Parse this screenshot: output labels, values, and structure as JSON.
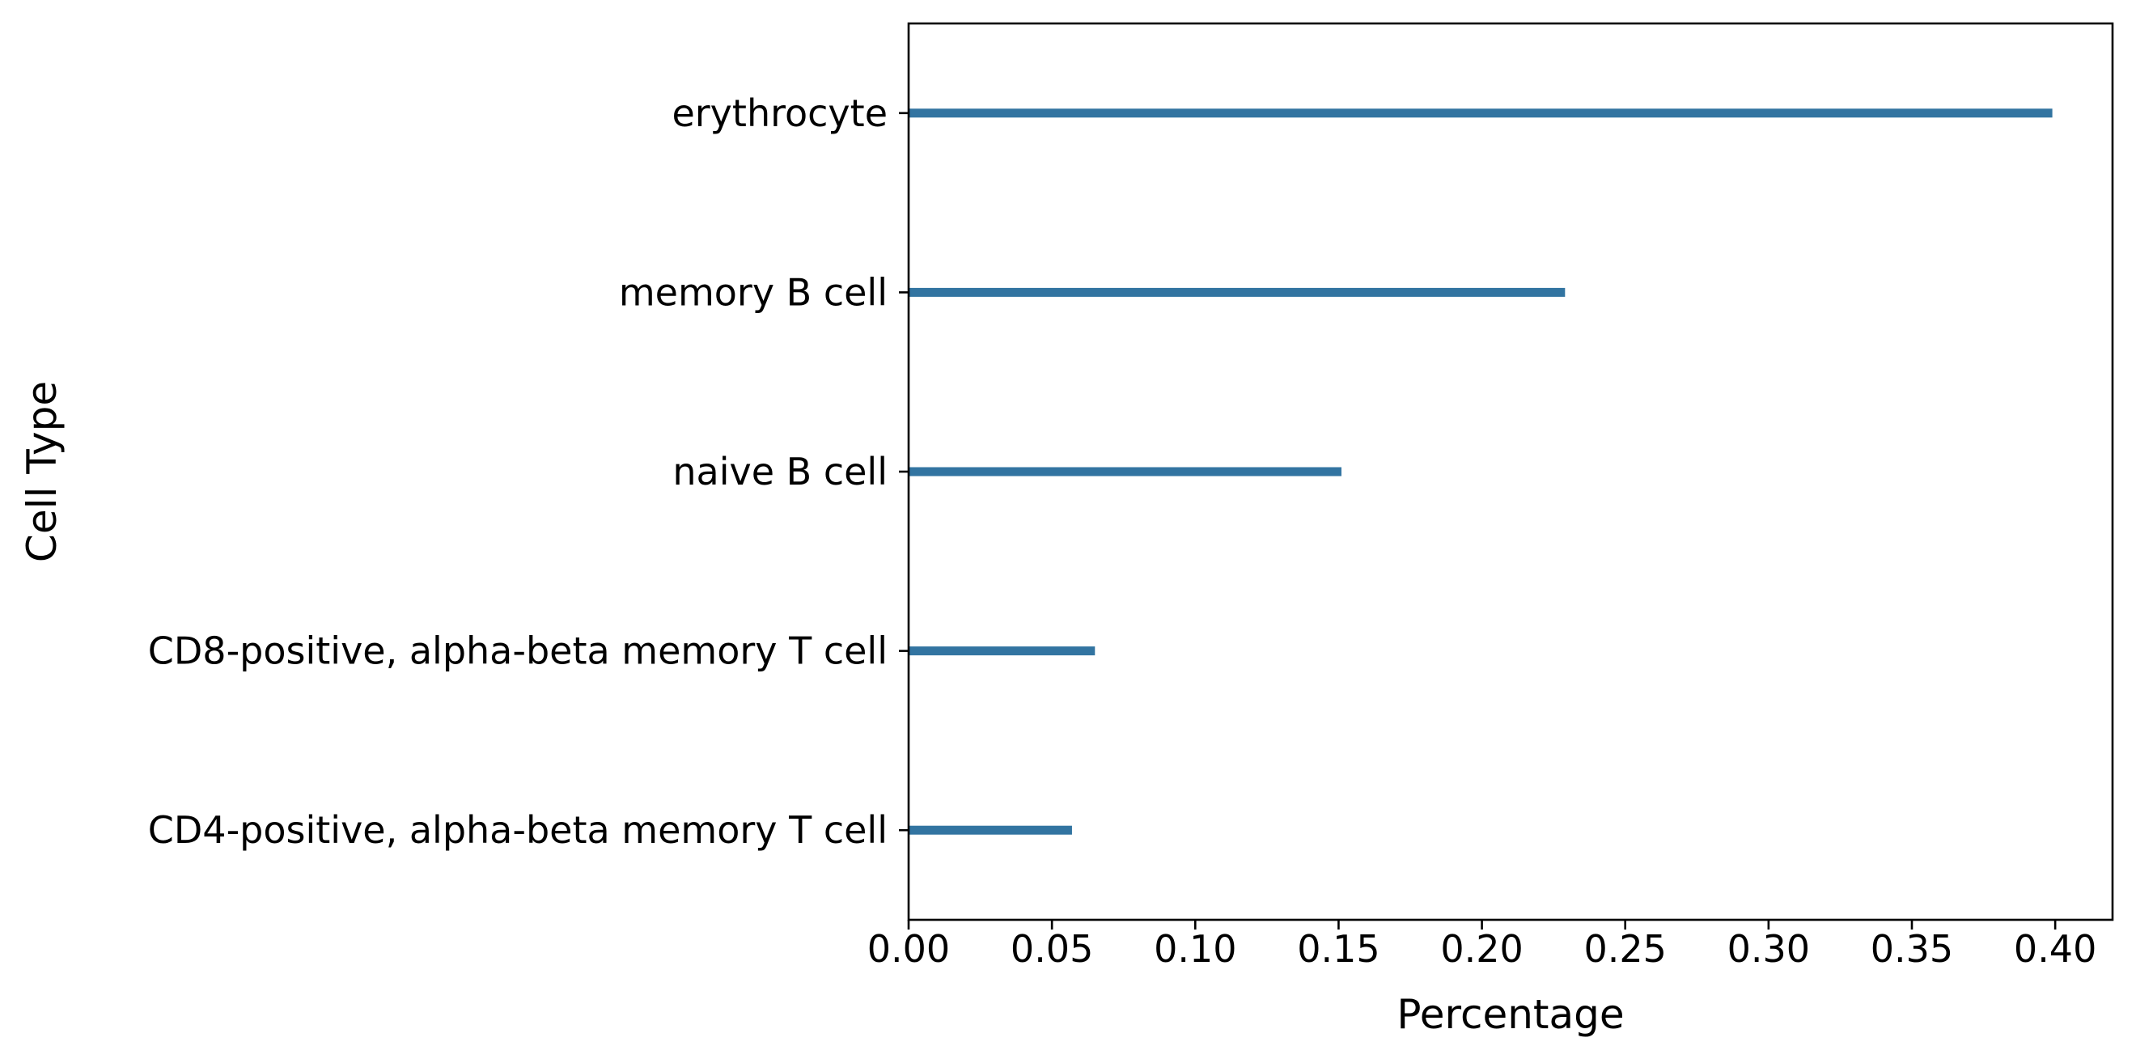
{
  "chart_data": {
    "type": "bar",
    "orientation": "horizontal",
    "categories": [
      "erythrocyte",
      "memory B cell",
      "naive B cell",
      "CD8-positive, alpha-beta memory T cell",
      "CD4-positive, alpha-beta memory T cell"
    ],
    "values": [
      0.399,
      0.229,
      0.151,
      0.065,
      0.057
    ],
    "xlabel": "Percentage",
    "ylabel": "Cell Type",
    "xlim": [
      0.0,
      0.42
    ],
    "xticks": [
      0.0,
      0.05,
      0.1,
      0.15,
      0.2,
      0.25,
      0.3,
      0.35,
      0.4
    ],
    "xtick_labels": [
      "0.00",
      "0.05",
      "0.10",
      "0.15",
      "0.20",
      "0.25",
      "0.30",
      "0.35",
      "0.40"
    ],
    "bar_color": "#3274a1",
    "grid": false,
    "legend": false
  }
}
